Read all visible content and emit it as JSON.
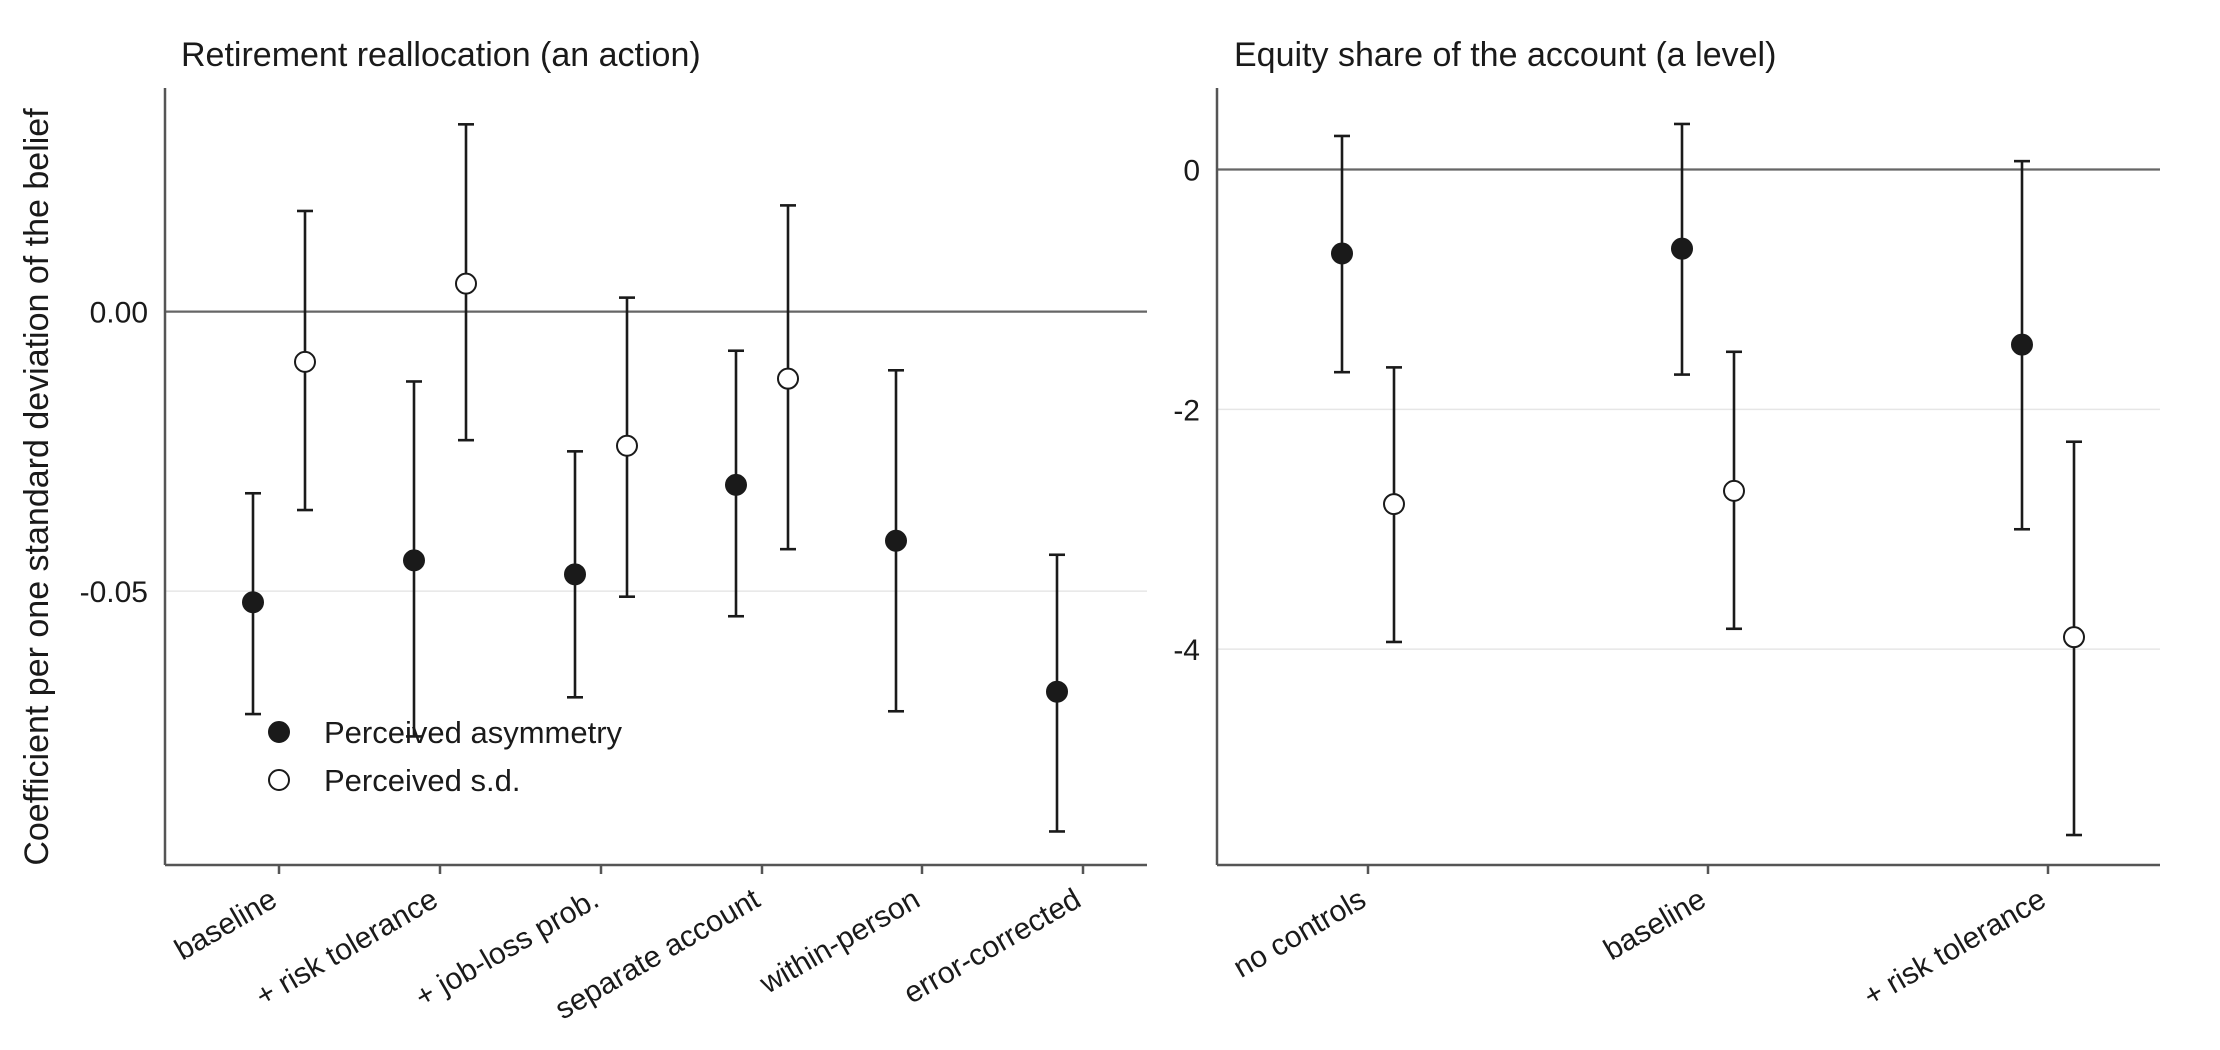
{
  "y_axis_label": "Coefficient per one standard deviation of the belief",
  "legend": {
    "placement": "bottom-left inside left panel",
    "entries": [
      {
        "name": "Perceived asymmetry",
        "marker": "filled-circle"
      },
      {
        "name": "Perceived s.d.",
        "marker": "open-circle"
      }
    ]
  },
  "colors": {
    "marker_fill": "#1a1a1a",
    "open_fill": "#ffffff",
    "axis": "#555555",
    "grid": "#e6e6e6",
    "zero_line": "#666666"
  },
  "chart_data": [
    {
      "type": "scatter",
      "title": "Retirement reallocation (an action)",
      "xlabel": "",
      "ylabel": "Coefficient per one standard deviation of the belief",
      "categories": [
        "baseline",
        "+ risk tolerance",
        "+ job-loss prob.",
        "separate account",
        "within-person",
        "error-corrected"
      ],
      "ylim": [
        -0.099,
        0.04
      ],
      "yticks": [
        0.0,
        -0.05
      ],
      "ytick_labels": [
        "0.00",
        "-0.05"
      ],
      "grid": "horizontal major lines",
      "reference_line": 0,
      "series": [
        {
          "name": "Perceived asymmetry",
          "marker": "filled",
          "points": [
            {
              "category": "baseline",
              "estimate": -0.052,
              "low": -0.072,
              "high": -0.0325
            },
            {
              "category": "+ risk tolerance",
              "estimate": -0.0445,
              "low": -0.076,
              "high": -0.0125
            },
            {
              "category": "+ job-loss prob.",
              "estimate": -0.047,
              "low": -0.069,
              "high": -0.025
            },
            {
              "category": "separate account",
              "estimate": -0.031,
              "low": -0.0545,
              "high": -0.007
            },
            {
              "category": "within-person",
              "estimate": -0.041,
              "low": -0.0715,
              "high": -0.0105
            },
            {
              "category": "error-corrected",
              "estimate": -0.068,
              "low": -0.093,
              "high": -0.0435
            }
          ]
        },
        {
          "name": "Perceived s.d.",
          "marker": "open",
          "points": [
            {
              "category": "baseline",
              "estimate": -0.009,
              "low": -0.0355,
              "high": 0.018
            },
            {
              "category": "+ risk tolerance",
              "estimate": 0.005,
              "low": -0.023,
              "high": 0.0335
            },
            {
              "category": "+ job-loss prob.",
              "estimate": -0.024,
              "low": -0.051,
              "high": 0.0025
            },
            {
              "category": "separate account",
              "estimate": -0.012,
              "low": -0.0425,
              "high": 0.019
            }
          ]
        }
      ]
    },
    {
      "type": "scatter",
      "title": "Equity share of the account (a level)",
      "xlabel": "",
      "ylabel": "",
      "categories": [
        "no controls",
        "baseline",
        "+ risk tolerance"
      ],
      "ylim": [
        -5.8,
        0.68
      ],
      "yticks": [
        0,
        -2,
        -4
      ],
      "ytick_labels": [
        "0",
        "-2",
        "-4"
      ],
      "grid": "horizontal major lines",
      "reference_line": 0,
      "series": [
        {
          "name": "Perceived asymmetry",
          "marker": "filled",
          "points": [
            {
              "category": "no controls",
              "estimate": -0.7,
              "low": -1.69,
              "high": 0.28
            },
            {
              "category": "baseline",
              "estimate": -0.66,
              "low": -1.71,
              "high": 0.38
            },
            {
              "category": "+ risk tolerance",
              "estimate": -1.46,
              "low": -3.0,
              "high": 0.07
            }
          ]
        },
        {
          "name": "Perceived s.d.",
          "marker": "open",
          "points": [
            {
              "category": "no controls",
              "estimate": -2.79,
              "low": -3.94,
              "high": -1.65
            },
            {
              "category": "baseline",
              "estimate": -2.68,
              "low": -3.83,
              "high": -1.52
            },
            {
              "category": "+ risk tolerance",
              "estimate": -3.9,
              "low": -5.55,
              "high": -2.27
            }
          ]
        }
      ]
    }
  ]
}
